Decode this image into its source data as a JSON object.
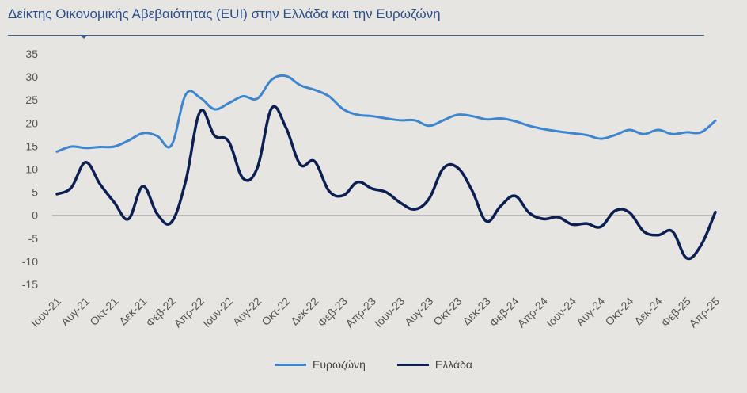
{
  "title": "Δείκτης Οικονομικής Αβεβαιότητας (EUI) στην Ελλάδα και την Ευρωζώνη",
  "colors": {
    "eurozone": "#3d86cf",
    "greece": "#0c1f52",
    "axis": "#a9a9a9",
    "text": "#555555"
  },
  "chart_data": {
    "type": "line",
    "title": "Δείκτης Οικονομικής Αβεβαιότητας (EUI) στην Ελλάδα και την Ευρωζώνη",
    "xlabel": "",
    "ylabel": "",
    "ylim": [
      -15,
      35
    ],
    "yticks": [
      35,
      30,
      25,
      20,
      15,
      10,
      5,
      0,
      -5,
      -10,
      -15
    ],
    "grid": false,
    "legend": "bottom",
    "x": [
      "Ιουν-21",
      "Ιουλ-21",
      "Αυγ-21",
      "Σεπ-21",
      "Οκτ-21",
      "Νοε-21",
      "Δεκ-21",
      "Ιαν-22",
      "Φεβ-22",
      "Μαρ-22",
      "Απρ-22",
      "Μαϊ-22",
      "Ιουν-22",
      "Ιουλ-22",
      "Αυγ-22",
      "Σεπ-22",
      "Οκτ-22",
      "Νοε-22",
      "Δεκ-22",
      "Ιαν-23",
      "Φεβ-23",
      "Μαρ-23",
      "Απρ-23",
      "Μαϊ-23",
      "Ιουν-23",
      "Ιουλ-23",
      "Αυγ-23",
      "Σεπ-23",
      "Οκτ-23",
      "Νοε-23",
      "Δεκ-23",
      "Ιαν-24",
      "Φεβ-24",
      "Μαρ-24",
      "Απρ-24",
      "Μαϊ-24",
      "Ιουν-24",
      "Ιουλ-24",
      "Αυγ-24",
      "Σεπ-24",
      "Οκτ-24",
      "Νοε-24",
      "Δεκ-24",
      "Ιαν-25",
      "Φεβ-25",
      "Μαρ-25",
      "Απρ-25"
    ],
    "xtick_labels": [
      "Ιουν-21",
      "Αυγ-21",
      "Οκτ-21",
      "Δεκ-21",
      "Φεβ-22",
      "Απρ-22",
      "Ιουν-22",
      "Αυγ-22",
      "Οκτ-22",
      "Δεκ-22",
      "Φεβ-23",
      "Απρ-23",
      "Ιουν-23",
      "Αυγ-23",
      "Οκτ-23",
      "Δεκ-23",
      "Φεβ-24",
      "Απρ-24",
      "Ιουν-24",
      "Αυγ-24",
      "Οκτ-24",
      "Δεκ-24",
      "Φεβ-25",
      "Απρ-25"
    ],
    "series": [
      {
        "name": "Ευρωζώνη",
        "color": "#3d86cf",
        "values": [
          13.8,
          14.9,
          14.6,
          14.8,
          14.9,
          16.2,
          17.8,
          17.2,
          15.2,
          26.2,
          25.5,
          23.0,
          24.3,
          25.8,
          25.3,
          29.4,
          30.2,
          28.2,
          27.2,
          25.8,
          23.0,
          21.8,
          21.5,
          21.0,
          20.6,
          20.6,
          19.4,
          20.6,
          21.8,
          21.5,
          20.8,
          21.0,
          20.4,
          19.4,
          18.7,
          18.2,
          17.8,
          17.4,
          16.6,
          17.4,
          18.5,
          17.6,
          18.5,
          17.6,
          18.0,
          18.0,
          20.5
        ]
      },
      {
        "name": "Ελλάδα",
        "color": "#0c1f52",
        "values": [
          4.6,
          6.0,
          11.5,
          6.8,
          2.8,
          -0.8,
          6.3,
          0.3,
          -1.5,
          7.5,
          22.5,
          17.3,
          16.0,
          8.0,
          10.3,
          23.2,
          19.0,
          11.0,
          11.7,
          5.3,
          4.3,
          7.2,
          5.8,
          5.0,
          2.7,
          1.3,
          3.6,
          10.2,
          10.3,
          5.4,
          -1.3,
          2.0,
          4.2,
          0.5,
          -0.8,
          -0.4,
          -2.0,
          -1.8,
          -2.5,
          1.0,
          0.6,
          -3.5,
          -4.3,
          -3.5,
          -9.3,
          -6.5,
          0.7
        ]
      }
    ]
  }
}
